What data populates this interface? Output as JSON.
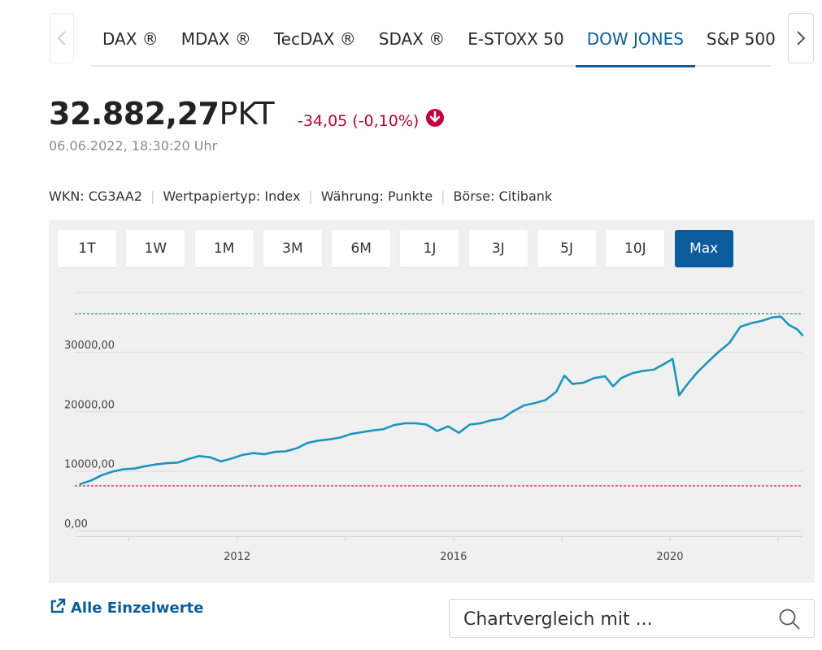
{
  "tabs": {
    "items": [
      {
        "label": "DAX ®"
      },
      {
        "label": "MDAX ®"
      },
      {
        "label": "TecDAX ®"
      },
      {
        "label": "SDAX ®"
      },
      {
        "label": "E-STOXX 50"
      },
      {
        "label": "DOW JONES"
      },
      {
        "label": "S&P 500"
      }
    ],
    "active": "DOW JONES",
    "prev_icon": "chevron-left-icon",
    "next_icon": "chevron-right-icon"
  },
  "quote": {
    "value": "32.882,27",
    "unit": "PKT",
    "change": "-34,05 (-0,10%)",
    "change_icon": "arrow-down-circle-icon",
    "timestamp": "06.06.2022, 18:30:20 Uhr",
    "change_color": "#c0003c"
  },
  "meta": {
    "wkn": "WKN: CG3AA2",
    "type": "Wertpapiertyp: Index",
    "currency": "Währung: Punkte",
    "exchange": "Börse: Citibank"
  },
  "ranges": {
    "items": [
      "1T",
      "1W",
      "1M",
      "3M",
      "6M",
      "1J",
      "3J",
      "5J",
      "10J",
      "Max"
    ],
    "active": "Max"
  },
  "chart_data": {
    "type": "line",
    "series": [
      {
        "color": "#1c95bd",
        "x": [
          2009.1,
          2009.3,
          2009.5,
          2009.7,
          2009.9,
          2010.1,
          2010.3,
          2010.5,
          2010.7,
          2010.9,
          2011.1,
          2011.3,
          2011.5,
          2011.7,
          2011.9,
          2012.1,
          2012.3,
          2012.5,
          2012.7,
          2012.9,
          2013.1,
          2013.3,
          2013.5,
          2013.7,
          2013.9,
          2014.1,
          2014.3,
          2014.5,
          2014.7,
          2014.9,
          2015.1,
          2015.3,
          2015.5,
          2015.7,
          2015.9,
          2016.1,
          2016.3,
          2016.5,
          2016.7,
          2016.9,
          2017.1,
          2017.3,
          2017.5,
          2017.7,
          2017.9,
          2018.05,
          2018.2,
          2018.4,
          2018.6,
          2018.8,
          2018.95,
          2019.1,
          2019.3,
          2019.5,
          2019.7,
          2019.9,
          2020.05,
          2020.17,
          2020.3,
          2020.5,
          2020.7,
          2020.9,
          2021.1,
          2021.3,
          2021.5,
          2021.7,
          2021.9,
          2022.05,
          2022.2,
          2022.35,
          2022.45
        ],
        "y": [
          7800,
          8400,
          9300,
          9900,
          10300,
          10400,
          10800,
          11100,
          11300,
          11400,
          12000,
          12500,
          12300,
          11600,
          12100,
          12700,
          13000,
          12800,
          13200,
          13300,
          13800,
          14700,
          15100,
          15300,
          15600,
          16200,
          16500,
          16800,
          17000,
          17700,
          18000,
          18000,
          17800,
          16700,
          17500,
          16400,
          17800,
          18000,
          18500,
          18800,
          20000,
          21000,
          21400,
          21900,
          23300,
          26000,
          24600,
          24800,
          25600,
          25900,
          24200,
          25600,
          26400,
          26800,
          27000,
          28000,
          28800,
          22700,
          24300,
          26500,
          28300,
          30000,
          31500,
          34200,
          34800,
          35200,
          35800,
          35900,
          34500,
          33800,
          32800
        ],
        "points": "uses x/y above"
      }
    ],
    "xlim": [
      2009.0,
      2022.45
    ],
    "ylim": [
      0,
      40000
    ],
    "x_ticks": [
      {
        "v": 2012,
        "label": "2012"
      },
      {
        "v": 2016,
        "label": "2016"
      },
      {
        "v": 2020,
        "label": "2020"
      }
    ],
    "x_minor_ticks": [
      2010,
      2014,
      2018,
      2022
    ],
    "y_ticks": [
      {
        "v": 0,
        "label": "0,00"
      },
      {
        "v": 10000,
        "label": "10000,00"
      },
      {
        "v": 20000,
        "label": "20000,00"
      },
      {
        "v": 30000,
        "label": "30000,00"
      }
    ],
    "reference_lines": [
      {
        "y": 36400,
        "color": "#1a8a6a",
        "style": "dashed"
      },
      {
        "y": 7500,
        "color": "#d02040",
        "style": "dashed"
      }
    ],
    "grid": true
  },
  "footer": {
    "link_label": "Alle Einzelwerte",
    "link_icon": "external-link-icon",
    "compare_placeholder": "Chartvergleich mit ...",
    "search_icon": "search-icon"
  }
}
